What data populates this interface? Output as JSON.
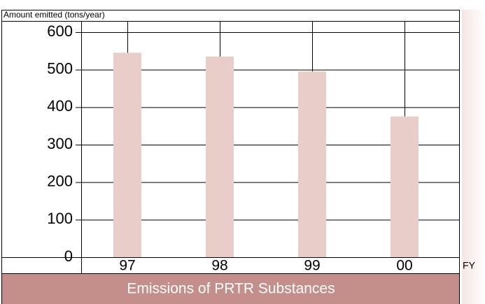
{
  "chart_data": {
    "type": "bar",
    "title": "Emissions of PRTR Substances",
    "y_axis_label": "Amount emitted (tons/year)",
    "x_axis_label": "FY",
    "categories": [
      "97",
      "98",
      "99",
      "00"
    ],
    "values": [
      545,
      535,
      495,
      375
    ],
    "color": "#e8cdc8",
    "ylim": [
      0,
      600
    ],
    "yticks": [
      0,
      100,
      200,
      300,
      400,
      500,
      600
    ],
    "grid": true
  }
}
